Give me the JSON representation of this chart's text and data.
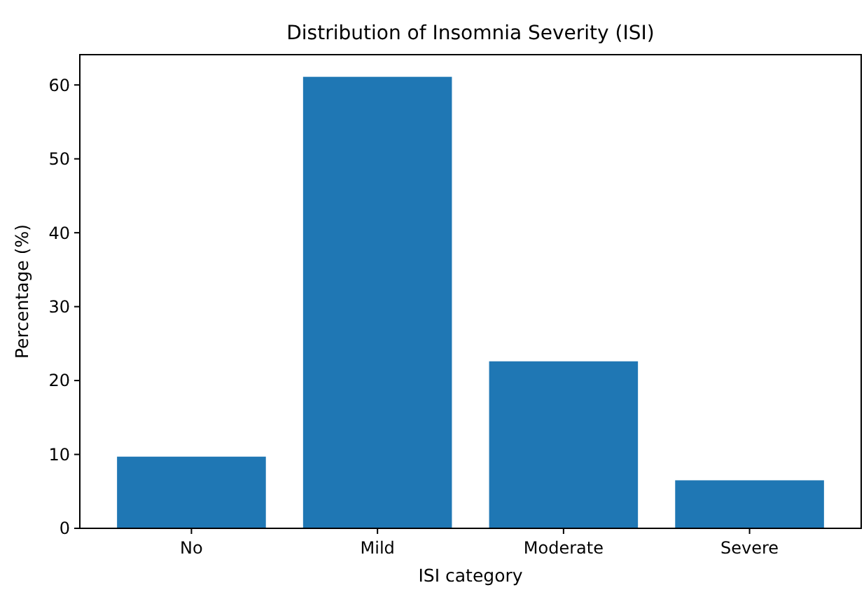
{
  "chart_data": {
    "type": "bar",
    "title": "Distribution of Insomnia Severity (ISI)",
    "xlabel": "ISI category",
    "ylabel": "Percentage (%)",
    "categories": [
      "No",
      "Mild",
      "Moderate",
      "Severe"
    ],
    "values": [
      9.7,
      61.1,
      22.6,
      6.5
    ],
    "color": "#1f77b4",
    "ylim": [
      0,
      64.1
    ],
    "yticks": [
      0,
      10,
      20,
      30,
      40,
      50,
      60
    ],
    "grid": false
  }
}
